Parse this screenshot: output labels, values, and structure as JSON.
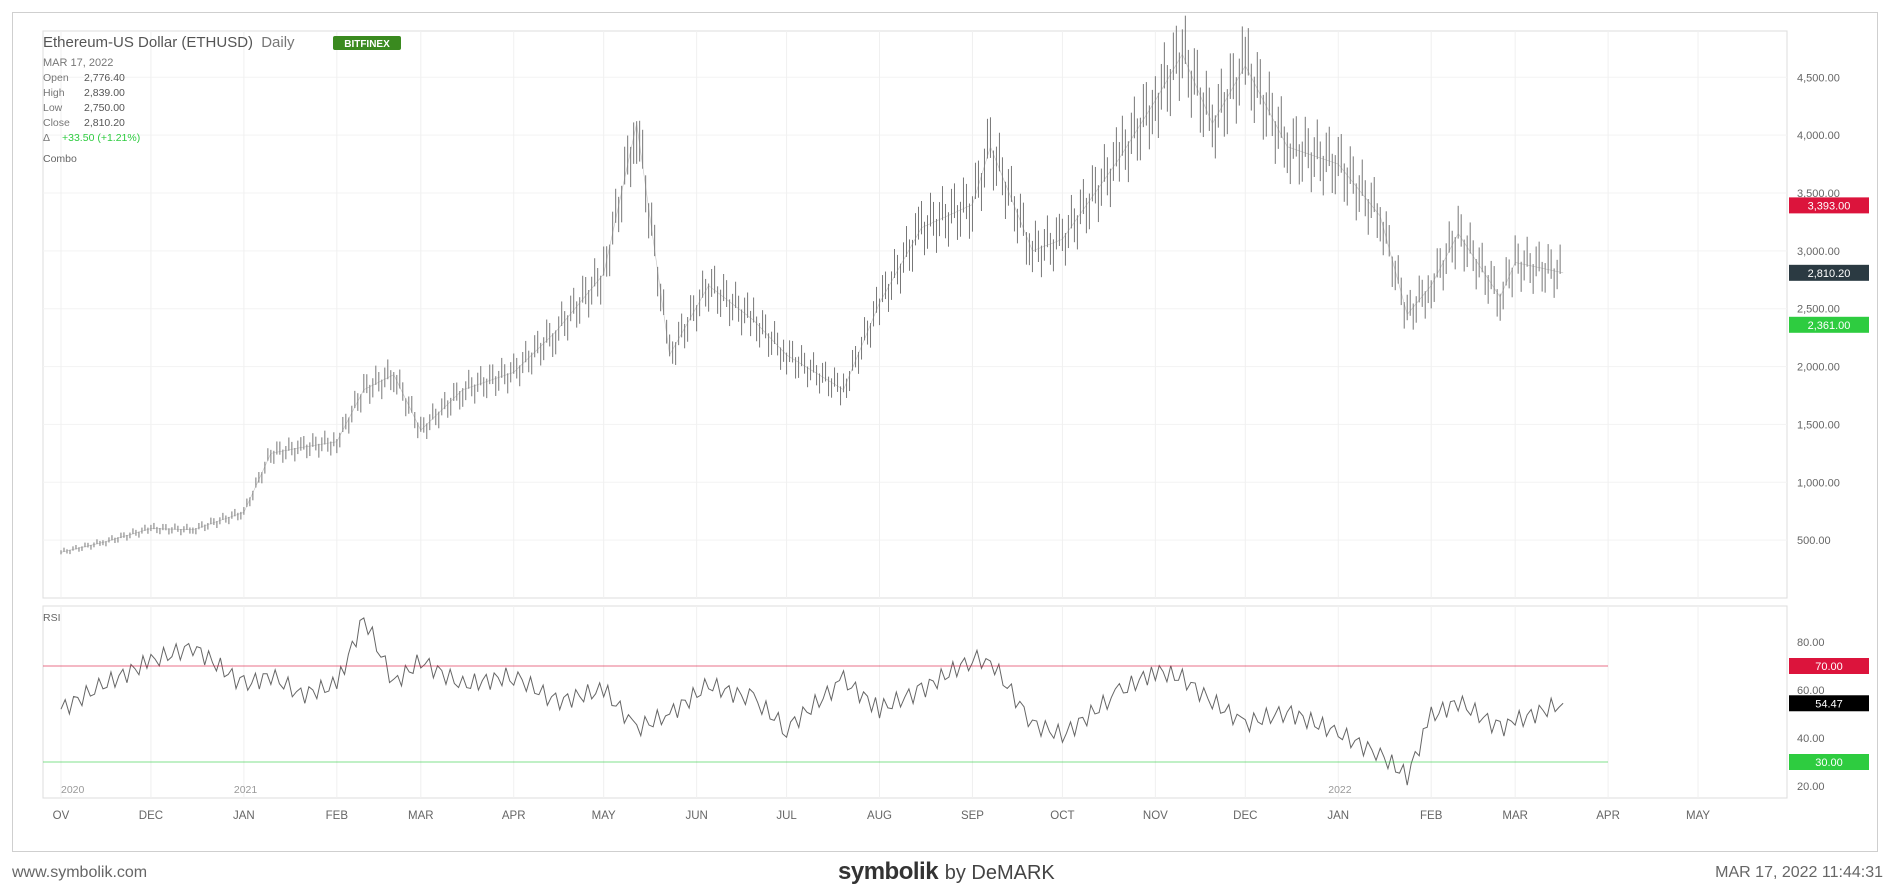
{
  "header": {
    "title": "Ethereum-US Dollar (ETHUSD)",
    "interval": "Daily",
    "exchange_badge": "BITFINEX",
    "date": "MAR 17, 2022",
    "open_label": "Open",
    "open": "2,776.40",
    "high_label": "High",
    "high": "2,839.00",
    "low_label": "Low",
    "low": "2,750.00",
    "close_label": "Close",
    "close": "2,810.20",
    "change_label": "Δ",
    "change": "+33.50 (+1.21%)",
    "study": "Combo"
  },
  "rsi_label": "RSI",
  "footer": {
    "site": "www.symbolik.com",
    "brand": "symbolik",
    "by": "by DeMARK",
    "timestamp": "MAR 17, 2022 11:44:31"
  },
  "colors": {
    "up": "#2ecc40",
    "down": "#d63384",
    "price": "#666666",
    "badge": "#3a8a1f"
  },
  "chart_data": [
    {
      "type": "line",
      "name": "price",
      "y_axis_ticks": [
        "4,500.00",
        "4,000.00",
        "3,500.00",
        "3,000.00",
        "2,500.00",
        "2,000.00",
        "1,500.00",
        "1,000.00",
        "500.00"
      ],
      "y_ticks_values": [
        4500,
        4000,
        3500,
        3000,
        2500,
        2000,
        1500,
        1000,
        500
      ],
      "ylim": [
        0,
        4900
      ],
      "price_badges": [
        {
          "label": "3,393.00",
          "value": 3393,
          "color": "#dc143c"
        },
        {
          "label": "2,810.20",
          "value": 2810.2,
          "color": "#2b3a42"
        },
        {
          "label": "2,361.00",
          "value": 2361,
          "color": "#2ecc40"
        }
      ],
      "x_month_labels": [
        "OV",
        "DEC",
        "JAN",
        "FEB",
        "MAR",
        "APR",
        "MAY",
        "JUN",
        "JUL",
        "AUG",
        "SEP",
        "OCT",
        "NOV",
        "DEC",
        "JAN",
        "FEB",
        "MAR",
        "APR",
        "MAY"
      ],
      "year_labels": [
        "2020",
        "2021",
        "2022"
      ],
      "x": [
        "2020-11-01",
        "2020-11-15",
        "2020-12-01",
        "2020-12-15",
        "2021-01-01",
        "2021-01-10",
        "2021-01-20",
        "2021-02-01",
        "2021-02-10",
        "2021-02-20",
        "2021-03-01",
        "2021-03-15",
        "2021-04-01",
        "2021-04-15",
        "2021-05-01",
        "2021-05-12",
        "2021-05-23",
        "2021-06-05",
        "2021-06-20",
        "2021-07-01",
        "2021-07-20",
        "2021-08-01",
        "2021-08-15",
        "2021-09-01",
        "2021-09-07",
        "2021-09-21",
        "2021-10-01",
        "2021-10-20",
        "2021-11-01",
        "2021-11-10",
        "2021-11-20",
        "2021-12-01",
        "2021-12-15",
        "2022-01-01",
        "2022-01-15",
        "2022-01-24",
        "2022-02-01",
        "2022-02-10",
        "2022-02-24",
        "2022-03-01",
        "2022-03-17"
      ],
      "close": [
        395,
        480,
        600,
        590,
        740,
        1250,
        1300,
        1350,
        1800,
        1930,
        1450,
        1800,
        1950,
        2300,
        2800,
        4100,
        2100,
        2700,
        2400,
        2100,
        1800,
        2550,
        3200,
        3400,
        3900,
        3000,
        3100,
        3800,
        4300,
        4700,
        4100,
        4600,
        3900,
        3750,
        3300,
        2450,
        2700,
        3150,
        2600,
        2900,
        2810
      ]
    },
    {
      "type": "line",
      "name": "RSI",
      "y_axis_ticks": [
        "80.00",
        "60.00",
        "40.00",
        "20.00"
      ],
      "y_ticks_values": [
        80,
        60,
        40,
        20
      ],
      "ylim": [
        15,
        95
      ],
      "levels": [
        {
          "label": "70.00",
          "value": 70,
          "color": "#dc143c"
        },
        {
          "label": "54.47",
          "value": 54.47,
          "color": "#000000"
        },
        {
          "label": "30.00",
          "value": 30,
          "color": "#2ecc40"
        }
      ],
      "values": [
        52,
        62,
        72,
        78,
        62,
        66,
        58,
        62,
        90,
        63,
        72,
        62,
        66,
        55,
        60,
        44,
        50,
        62,
        56,
        44,
        64,
        52,
        60,
        73,
        72,
        46,
        41,
        59,
        68,
        65,
        55,
        46,
        51,
        42,
        33,
        24,
        49,
        55,
        44,
        47,
        54.47
      ]
    }
  ]
}
